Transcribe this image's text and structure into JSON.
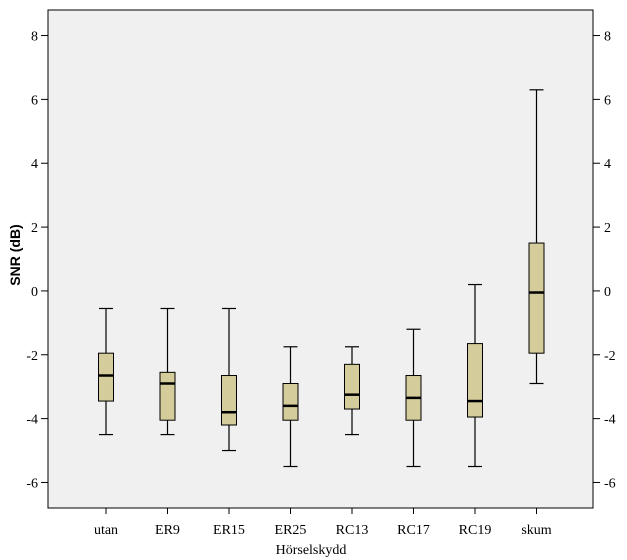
{
  "chart_data": {
    "type": "box",
    "xlabel": "Hörselskydd",
    "ylabel": "SNR (dB)",
    "ylim": [
      -6.8,
      8.8
    ],
    "yticks": [
      8,
      6,
      4,
      2,
      0,
      -2,
      -4,
      -6
    ],
    "grid": false,
    "colors": {
      "plot_bg": "#f0f0f0",
      "box_fill": "#d4cc9a",
      "stroke": "#000000"
    },
    "categories": [
      "utan",
      "ER9",
      "ER15",
      "ER25",
      "RC13",
      "RC17",
      "RC19",
      "skum"
    ],
    "boxes": [
      {
        "category": "utan",
        "whisker_low": -4.5,
        "q1": -3.45,
        "median": -2.65,
        "q3": -1.95,
        "whisker_high": -0.55
      },
      {
        "category": "ER9",
        "whisker_low": -4.5,
        "q1": -4.05,
        "median": -2.9,
        "q3": -2.55,
        "whisker_high": -0.55
      },
      {
        "category": "ER15",
        "whisker_low": -5.0,
        "q1": -4.2,
        "median": -3.8,
        "q3": -2.65,
        "whisker_high": -0.55
      },
      {
        "category": "ER25",
        "whisker_low": -5.5,
        "q1": -4.05,
        "median": -3.6,
        "q3": -2.9,
        "whisker_high": -1.75
      },
      {
        "category": "RC13",
        "whisker_low": -4.5,
        "q1": -3.7,
        "median": -3.25,
        "q3": -2.3,
        "whisker_high": -1.75
      },
      {
        "category": "RC17",
        "whisker_low": -5.5,
        "q1": -4.05,
        "median": -3.35,
        "q3": -2.65,
        "whisker_high": -1.2
      },
      {
        "category": "RC19",
        "whisker_low": -5.5,
        "q1": -3.95,
        "median": -3.45,
        "q3": -1.65,
        "whisker_high": 0.2
      },
      {
        "category": "skum",
        "whisker_low": -2.9,
        "q1": -1.95,
        "median": -0.05,
        "q3": 1.5,
        "whisker_high": 6.3
      }
    ]
  }
}
